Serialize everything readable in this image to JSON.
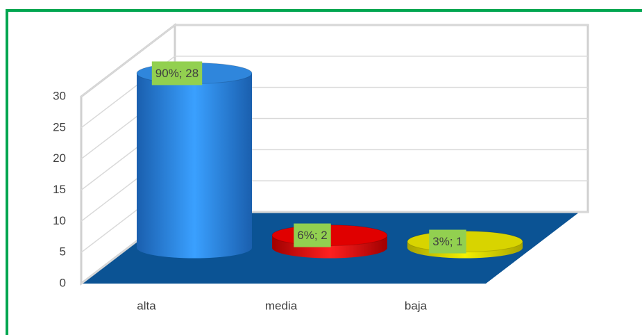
{
  "chart_data": {
    "type": "bar3d",
    "categories": [
      "alta",
      "media",
      "baja"
    ],
    "values": [
      28,
      2,
      1
    ],
    "value_labels": [
      "90%; 28",
      "6%; 2",
      "3%; 1"
    ],
    "colors": [
      "#2f86dc",
      "#e00000",
      "#d8d400"
    ],
    "ylim": [
      0,
      30
    ],
    "yticks": [
      0,
      5,
      10,
      15,
      20,
      25,
      30
    ],
    "grid": true
  }
}
